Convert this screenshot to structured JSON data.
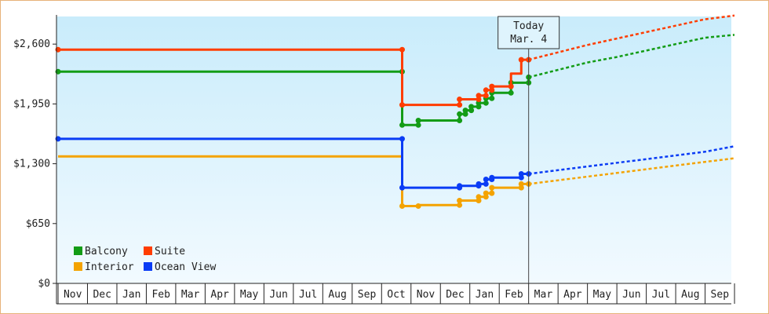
{
  "chart_data": {
    "type": "line",
    "title": "",
    "xlabel": "",
    "ylabel": "",
    "ylim": [
      0,
      2900
    ],
    "yticks": [
      0,
      650,
      1300,
      1950,
      2600
    ],
    "ytick_labels": [
      "$0",
      "$650",
      "$1,300",
      "$1,950",
      "$2,600"
    ],
    "x_month_labels": [
      "Nov",
      "Dec",
      "Jan",
      "Feb",
      "Mar",
      "Apr",
      "May",
      "Jun",
      "Jul",
      "Aug",
      "Sep",
      "Oct",
      "Nov",
      "Dec",
      "Jan",
      "Feb",
      "Mar",
      "Apr",
      "May",
      "Jun",
      "Jul",
      "Aug",
      "Sep"
    ],
    "xlim": [
      0,
      23
    ],
    "grid": false,
    "background": [
      "#c9ecfb",
      "#f2faff"
    ],
    "legend_position": "bottom-left",
    "today_marker": {
      "x": 16.0,
      "lines": [
        "Today",
        "Mar. 4"
      ]
    },
    "series": [
      {
        "name": "Balcony",
        "color": "#139c16",
        "line": "step",
        "points": [
          [
            0,
            2300
          ],
          [
            11.7,
            2300
          ],
          [
            11.7,
            1720
          ],
          [
            12.25,
            1720
          ],
          [
            12.25,
            1770
          ],
          [
            13.65,
            1770
          ],
          [
            13.65,
            1840
          ],
          [
            13.85,
            1840
          ],
          [
            13.85,
            1880
          ],
          [
            14.05,
            1880
          ],
          [
            14.05,
            1920
          ],
          [
            14.3,
            1920
          ],
          [
            14.3,
            1960
          ],
          [
            14.55,
            1960
          ],
          [
            14.55,
            2010
          ],
          [
            14.75,
            2010
          ],
          [
            14.75,
            2070
          ],
          [
            15.4,
            2070
          ],
          [
            15.4,
            2180
          ],
          [
            16.0,
            2180
          ],
          [
            16.0,
            2240
          ]
        ],
        "markers": [
          [
            0,
            2300
          ],
          [
            11.7,
            2300
          ],
          [
            11.7,
            1720
          ],
          [
            12.25,
            1720
          ],
          [
            12.25,
            1770
          ],
          [
            13.65,
            1770
          ],
          [
            13.65,
            1840
          ],
          [
            13.85,
            1840
          ],
          [
            13.85,
            1880
          ],
          [
            14.05,
            1880
          ],
          [
            14.05,
            1920
          ],
          [
            14.3,
            1920
          ],
          [
            14.3,
            1960
          ],
          [
            14.55,
            1960
          ],
          [
            14.55,
            2010
          ],
          [
            14.75,
            2010
          ],
          [
            14.75,
            2070
          ],
          [
            15.4,
            2070
          ],
          [
            15.4,
            2180
          ],
          [
            16.0,
            2180
          ],
          [
            16.0,
            2240
          ]
        ],
        "forecast": [
          [
            16.0,
            2240
          ],
          [
            17,
            2320
          ],
          [
            18,
            2400
          ],
          [
            19,
            2460
          ],
          [
            20,
            2530
          ],
          [
            21,
            2600
          ],
          [
            22,
            2670
          ],
          [
            23,
            2700
          ]
        ]
      },
      {
        "name": "Suite",
        "color": "#ff3d00",
        "line": "step",
        "points": [
          [
            0,
            2540
          ],
          [
            11.7,
            2540
          ],
          [
            11.7,
            1940
          ],
          [
            13.65,
            1940
          ],
          [
            13.65,
            2000
          ],
          [
            14.3,
            2000
          ],
          [
            14.3,
            2040
          ],
          [
            14.55,
            2040
          ],
          [
            14.55,
            2100
          ],
          [
            14.75,
            2100
          ],
          [
            14.75,
            2140
          ],
          [
            15.4,
            2140
          ],
          [
            15.4,
            2280
          ],
          [
            15.75,
            2280
          ],
          [
            15.75,
            2430
          ],
          [
            16.0,
            2430
          ]
        ],
        "markers": [
          [
            0,
            2540
          ],
          [
            11.7,
            2540
          ],
          [
            11.7,
            1940
          ],
          [
            13.65,
            1940
          ],
          [
            13.65,
            2000
          ],
          [
            14.3,
            2000
          ],
          [
            14.3,
            2040
          ],
          [
            14.55,
            2040
          ],
          [
            14.55,
            2100
          ],
          [
            14.75,
            2100
          ],
          [
            14.75,
            2140
          ],
          [
            15.4,
            2140
          ],
          [
            15.75,
            2430
          ],
          [
            16.0,
            2430
          ]
        ],
        "forecast": [
          [
            16.0,
            2430
          ],
          [
            17,
            2510
          ],
          [
            18,
            2590
          ],
          [
            19,
            2660
          ],
          [
            20,
            2730
          ],
          [
            21,
            2800
          ],
          [
            22,
            2870
          ],
          [
            23,
            2910
          ]
        ]
      },
      {
        "name": "Interior",
        "color": "#f4a300",
        "line": "step",
        "points": [
          [
            0,
            1380
          ],
          [
            11.7,
            1380
          ],
          [
            11.7,
            840
          ],
          [
            12.25,
            840
          ],
          [
            12.25,
            850
          ],
          [
            13.65,
            850
          ],
          [
            13.65,
            900
          ],
          [
            14.3,
            900
          ],
          [
            14.3,
            940
          ],
          [
            14.55,
            940
          ],
          [
            14.55,
            980
          ],
          [
            14.75,
            980
          ],
          [
            14.75,
            1040
          ],
          [
            15.75,
            1040
          ],
          [
            15.75,
            1080
          ],
          [
            16.0,
            1080
          ]
        ],
        "markers": [
          [
            11.7,
            840
          ],
          [
            12.25,
            840
          ],
          [
            13.65,
            850
          ],
          [
            13.65,
            900
          ],
          [
            14.3,
            900
          ],
          [
            14.3,
            940
          ],
          [
            14.55,
            940
          ],
          [
            14.55,
            980
          ],
          [
            14.75,
            980
          ],
          [
            14.75,
            1040
          ],
          [
            15.75,
            1040
          ],
          [
            15.75,
            1080
          ],
          [
            16.0,
            1080
          ]
        ],
        "forecast": [
          [
            16.0,
            1080
          ],
          [
            17,
            1120
          ],
          [
            18,
            1160
          ],
          [
            19,
            1200
          ],
          [
            20,
            1240
          ],
          [
            21,
            1280
          ],
          [
            22,
            1320
          ],
          [
            23,
            1360
          ]
        ]
      },
      {
        "name": "Ocean View",
        "color": "#0a3cf5",
        "line": "step",
        "points": [
          [
            0,
            1570
          ],
          [
            11.7,
            1570
          ],
          [
            11.7,
            1040
          ],
          [
            13.65,
            1040
          ],
          [
            13.65,
            1060
          ],
          [
            14.3,
            1060
          ],
          [
            14.3,
            1080
          ],
          [
            14.55,
            1080
          ],
          [
            14.55,
            1130
          ],
          [
            14.75,
            1130
          ],
          [
            14.75,
            1150
          ],
          [
            15.75,
            1150
          ],
          [
            15.75,
            1190
          ],
          [
            16.0,
            1190
          ]
        ],
        "markers": [
          [
            0,
            1570
          ],
          [
            11.7,
            1570
          ],
          [
            11.7,
            1040
          ],
          [
            13.65,
            1040
          ],
          [
            13.65,
            1060
          ],
          [
            14.3,
            1060
          ],
          [
            14.3,
            1080
          ],
          [
            14.55,
            1080
          ],
          [
            14.55,
            1130
          ],
          [
            14.75,
            1130
          ],
          [
            14.75,
            1150
          ],
          [
            15.75,
            1150
          ],
          [
            15.75,
            1190
          ],
          [
            16.0,
            1190
          ]
        ],
        "forecast": [
          [
            16.0,
            1190
          ],
          [
            17,
            1230
          ],
          [
            18,
            1270
          ],
          [
            19,
            1310
          ],
          [
            20,
            1350
          ],
          [
            21,
            1390
          ],
          [
            22,
            1430
          ],
          [
            23,
            1490
          ]
        ]
      }
    ],
    "legend_order": [
      "Balcony",
      "Suite",
      "Interior",
      "Ocean View"
    ]
  }
}
